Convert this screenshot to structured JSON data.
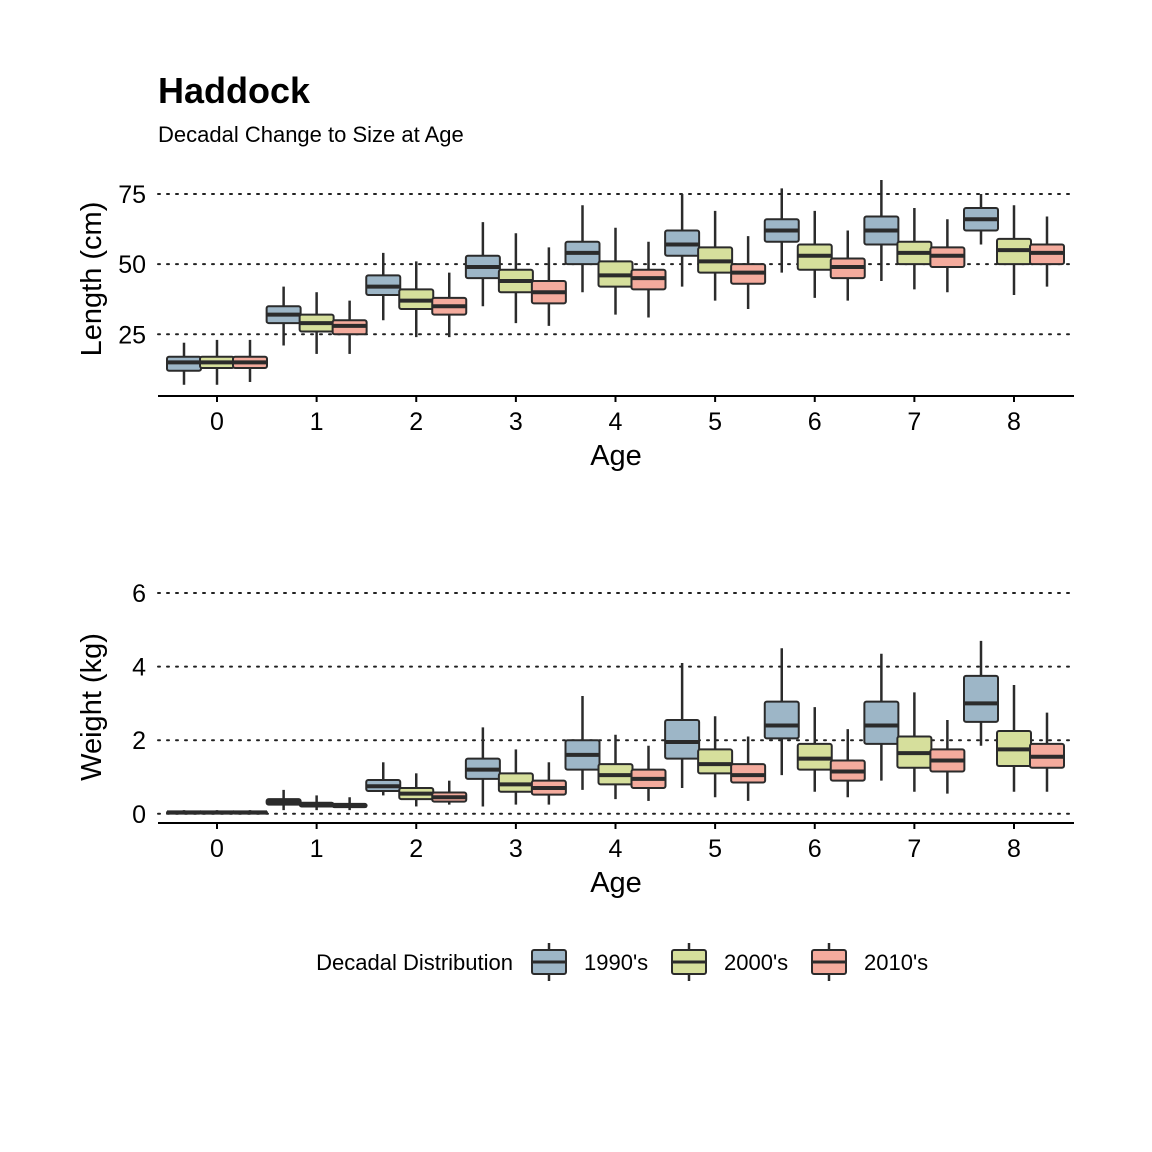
{
  "title": "Haddock",
  "subtitle": "Decadal Change to Size at Age",
  "legend": {
    "title": "Decadal Distribution",
    "position": "bottom",
    "items": [
      {
        "label": "1990's",
        "color": "#9db6c7"
      },
      {
        "label": "2000's",
        "color": "#d6df9c"
      },
      {
        "label": "2010's",
        "color": "#f4ab9d"
      }
    ]
  },
  "chart_data": [
    {
      "type": "boxplot",
      "xlabel": "Age",
      "ylabel": "Length (cm)",
      "categories": [
        "0",
        "1",
        "2",
        "3",
        "4",
        "5",
        "6",
        "7",
        "8"
      ],
      "ylim": [
        3,
        80
      ],
      "yticks": [
        25,
        50,
        75
      ],
      "grid": "horizontal dotted",
      "series": [
        {
          "name": "1990's",
          "boxes": [
            {
              "whislo": 7,
              "q1": 12,
              "med": 15,
              "q3": 17,
              "whishi": 22
            },
            {
              "whislo": 21,
              "q1": 29,
              "med": 32,
              "q3": 35,
              "whishi": 42
            },
            {
              "whislo": 30,
              "q1": 39,
              "med": 42,
              "q3": 46,
              "whishi": 54
            },
            {
              "whislo": 35,
              "q1": 45,
              "med": 49,
              "q3": 53,
              "whishi": 65
            },
            {
              "whislo": 40,
              "q1": 50,
              "med": 54,
              "q3": 58,
              "whishi": 71
            },
            {
              "whislo": 42,
              "q1": 53,
              "med": 57,
              "q3": 62,
              "whishi": 75
            },
            {
              "whislo": 47,
              "q1": 58,
              "med": 62,
              "q3": 66,
              "whishi": 77
            },
            {
              "whislo": 44,
              "q1": 57,
              "med": 62,
              "q3": 67,
              "whishi": 80
            },
            {
              "whislo": 57,
              "q1": 62,
              "med": 66,
              "q3": 70,
              "whishi": 75
            }
          ]
        },
        {
          "name": "2000's",
          "boxes": [
            {
              "whislo": 7,
              "q1": 13,
              "med": 15,
              "q3": 17,
              "whishi": 23
            },
            {
              "whislo": 18,
              "q1": 26,
              "med": 29,
              "q3": 32,
              "whishi": 40
            },
            {
              "whislo": 24,
              "q1": 34,
              "med": 37,
              "q3": 41,
              "whishi": 51
            },
            {
              "whislo": 29,
              "q1": 40,
              "med": 44,
              "q3": 48,
              "whishi": 61
            },
            {
              "whislo": 32,
              "q1": 42,
              "med": 46,
              "q3": 51,
              "whishi": 63
            },
            {
              "whislo": 37,
              "q1": 47,
              "med": 51,
              "q3": 56,
              "whishi": 69
            },
            {
              "whislo": 38,
              "q1": 48,
              "med": 53,
              "q3": 57,
              "whishi": 69
            },
            {
              "whislo": 41,
              "q1": 50,
              "med": 54,
              "q3": 58,
              "whishi": 70
            },
            {
              "whislo": 39,
              "q1": 50,
              "med": 55,
              "q3": 59,
              "whishi": 71
            }
          ]
        },
        {
          "name": "2010's",
          "boxes": [
            {
              "whislo": 8,
              "q1": 13,
              "med": 15,
              "q3": 17,
              "whishi": 23
            },
            {
              "whislo": 18,
              "q1": 25,
              "med": 28,
              "q3": 30,
              "whishi": 37
            },
            {
              "whislo": 24,
              "q1": 32,
              "med": 35,
              "q3": 38,
              "whishi": 47
            },
            {
              "whislo": 28,
              "q1": 36,
              "med": 40,
              "q3": 44,
              "whishi": 56
            },
            {
              "whislo": 31,
              "q1": 41,
              "med": 45,
              "q3": 48,
              "whishi": 58
            },
            {
              "whislo": 34,
              "q1": 43,
              "med": 47,
              "q3": 50,
              "whishi": 60
            },
            {
              "whislo": 37,
              "q1": 45,
              "med": 49,
              "q3": 52,
              "whishi": 62
            },
            {
              "whislo": 40,
              "q1": 49,
              "med": 53,
              "q3": 56,
              "whishi": 66
            },
            {
              "whislo": 42,
              "q1": 50,
              "med": 54,
              "q3": 57,
              "whishi": 67
            }
          ]
        }
      ]
    },
    {
      "type": "boxplot",
      "xlabel": "Age",
      "ylabel": "Weight (kg)",
      "categories": [
        "0",
        "1",
        "2",
        "3",
        "4",
        "5",
        "6",
        "7",
        "8"
      ],
      "ylim": [
        -0.25,
        6.3
      ],
      "yticks": [
        0,
        2,
        4,
        6
      ],
      "grid": "horizontal dotted",
      "series": [
        {
          "name": "1990's",
          "boxes": [
            {
              "whislo": 0.0,
              "q1": 0.02,
              "med": 0.04,
              "q3": 0.06,
              "whishi": 0.1
            },
            {
              "whislo": 0.1,
              "q1": 0.25,
              "med": 0.32,
              "q3": 0.4,
              "whishi": 0.65
            },
            {
              "whislo": 0.5,
              "q1": 0.62,
              "med": 0.75,
              "q3": 0.92,
              "whishi": 1.4
            },
            {
              "whislo": 0.2,
              "q1": 0.95,
              "med": 1.2,
              "q3": 1.5,
              "whishi": 2.35
            },
            {
              "whislo": 0.65,
              "q1": 1.2,
              "med": 1.6,
              "q3": 2.0,
              "whishi": 3.2
            },
            {
              "whislo": 0.7,
              "q1": 1.5,
              "med": 1.95,
              "q3": 2.55,
              "whishi": 4.1
            },
            {
              "whislo": 1.05,
              "q1": 2.05,
              "med": 2.4,
              "q3": 3.05,
              "whishi": 4.5
            },
            {
              "whislo": 0.9,
              "q1": 1.9,
              "med": 2.4,
              "q3": 3.05,
              "whishi": 4.35
            },
            {
              "whislo": 1.85,
              "q1": 2.5,
              "med": 3.0,
              "q3": 3.75,
              "whishi": 4.7
            }
          ]
        },
        {
          "name": "2000's",
          "boxes": [
            {
              "whislo": 0.0,
              "q1": 0.02,
              "med": 0.04,
              "q3": 0.06,
              "whishi": 0.1
            },
            {
              "whislo": 0.1,
              "q1": 0.2,
              "med": 0.25,
              "q3": 0.3,
              "whishi": 0.5
            },
            {
              "whislo": 0.2,
              "q1": 0.4,
              "med": 0.55,
              "q3": 0.7,
              "whishi": 1.1
            },
            {
              "whislo": 0.25,
              "q1": 0.6,
              "med": 0.8,
              "q3": 1.1,
              "whishi": 1.75
            },
            {
              "whislo": 0.4,
              "q1": 0.8,
              "med": 1.05,
              "q3": 1.35,
              "whishi": 2.15
            },
            {
              "whislo": 0.45,
              "q1": 1.1,
              "med": 1.35,
              "q3": 1.75,
              "whishi": 2.65
            },
            {
              "whislo": 0.6,
              "q1": 1.2,
              "med": 1.5,
              "q3": 1.9,
              "whishi": 2.9
            },
            {
              "whislo": 0.6,
              "q1": 1.25,
              "med": 1.65,
              "q3": 2.1,
              "whishi": 3.3
            },
            {
              "whislo": 0.6,
              "q1": 1.3,
              "med": 1.75,
              "q3": 2.25,
              "whishi": 3.5
            }
          ]
        },
        {
          "name": "2010's",
          "boxes": [
            {
              "whislo": 0.0,
              "q1": 0.02,
              "med": 0.04,
              "q3": 0.06,
              "whishi": 0.1
            },
            {
              "whislo": 0.1,
              "q1": 0.18,
              "med": 0.22,
              "q3": 0.27,
              "whishi": 0.45
            },
            {
              "whislo": 0.25,
              "q1": 0.33,
              "med": 0.45,
              "q3": 0.58,
              "whishi": 0.9
            },
            {
              "whislo": 0.25,
              "q1": 0.52,
              "med": 0.7,
              "q3": 0.9,
              "whishi": 1.4
            },
            {
              "whislo": 0.35,
              "q1": 0.7,
              "med": 0.95,
              "q3": 1.2,
              "whishi": 1.85
            },
            {
              "whislo": 0.35,
              "q1": 0.85,
              "med": 1.05,
              "q3": 1.35,
              "whishi": 2.1
            },
            {
              "whislo": 0.45,
              "q1": 0.9,
              "med": 1.15,
              "q3": 1.45,
              "whishi": 2.3
            },
            {
              "whislo": 0.55,
              "q1": 1.15,
              "med": 1.45,
              "q3": 1.75,
              "whishi": 2.55
            },
            {
              "whislo": 0.6,
              "q1": 1.25,
              "med": 1.55,
              "q3": 1.9,
              "whishi": 2.75
            }
          ]
        }
      ]
    }
  ]
}
